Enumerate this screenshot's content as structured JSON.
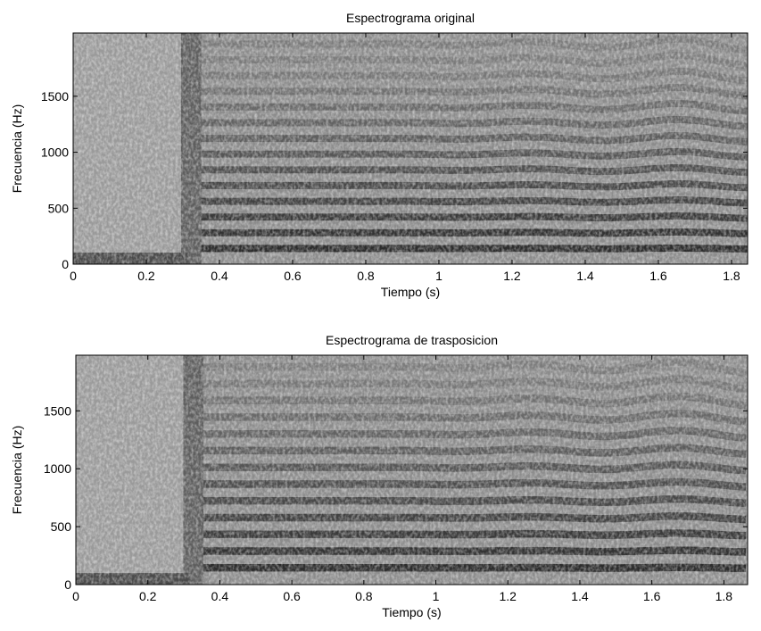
{
  "chart_data": [
    {
      "type": "spectrogram",
      "title": "Espectrograma original",
      "xlabel": "Tiempo (s)",
      "ylabel": "Frecuencia (Hz)",
      "xlim": [
        0,
        1.844
      ],
      "ylim": [
        0,
        2065
      ],
      "xticks": [
        0,
        0.2,
        0.4,
        0.6,
        0.8,
        1,
        1.2,
        1.4,
        1.6,
        1.8
      ],
      "yticks": [
        0,
        500,
        1000,
        1500
      ]
    },
    {
      "type": "spectrogram",
      "title": "Espectrograma de trasposicion",
      "xlabel": "Tiempo (s)",
      "ylabel": "Frecuencia (Hz)",
      "xlim": [
        0,
        1.866
      ],
      "ylim": [
        0,
        1980
      ],
      "xticks": [
        0,
        0.2,
        0.4,
        0.6,
        0.8,
        1,
        1.2,
        1.4,
        1.6,
        1.8
      ],
      "yticks": [
        0,
        500,
        1000,
        1500
      ]
    }
  ]
}
